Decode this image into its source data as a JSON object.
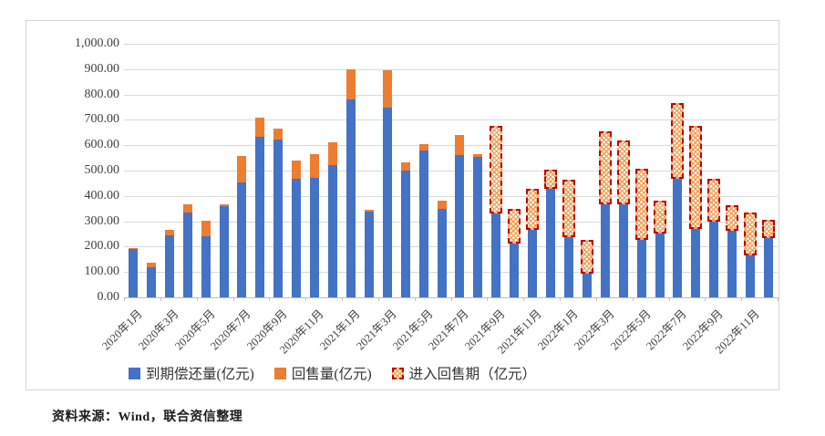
{
  "chart_data": {
    "type": "bar",
    "stacked": true,
    "grid": true,
    "legend_position": "bottom",
    "ylim": [
      0,
      1000
    ],
    "y_ticks": [
      "1,000.00",
      "900.00",
      "800.00",
      "700.00",
      "600.00",
      "500.00",
      "400.00",
      "300.00",
      "200.00",
      "100.00",
      "0.00"
    ],
    "x_label_every": 2,
    "categories": [
      "2020年1月",
      "2020年2月",
      "2020年3月",
      "2020年4月",
      "2020年5月",
      "2020年6月",
      "2020年7月",
      "2020年8月",
      "2020年9月",
      "2020年10月",
      "2020年11月",
      "2020年12月",
      "2021年1月",
      "2021年2月",
      "2021年3月",
      "2021年4月",
      "2021年5月",
      "2021年6月",
      "2021年7月",
      "2021年8月",
      "2021年9月",
      "2021年10月",
      "2021年11月",
      "2021年12月",
      "2022年1月",
      "2022年2月",
      "2022年3月",
      "2022年4月",
      "2022年5月",
      "2022年6月",
      "2022年7月",
      "2022年8月",
      "2022年9月",
      "2022年10月",
      "2022年11月",
      "2022年12月"
    ],
    "series": [
      {
        "name": "到期偿还量(亿元)",
        "color": "#4472C4",
        "style": "solid",
        "values": [
          190,
          118,
          245,
          335,
          242,
          358,
          453,
          633,
          622,
          468,
          473,
          522,
          780,
          338,
          750,
          500,
          578,
          350,
          562,
          553,
          330,
          212,
          265,
          427,
          238,
          92,
          366,
          368,
          226,
          251,
          466,
          269,
          297,
          264,
          165,
          234
        ]
      },
      {
        "name": "回售量(亿元)",
        "color": "#ED7D31",
        "style": "solid",
        "values": [
          3,
          17,
          20,
          33,
          61,
          8,
          105,
          77,
          45,
          73,
          93,
          88,
          120,
          6,
          146,
          31,
          28,
          30,
          78,
          12,
          0,
          0,
          0,
          0,
          0,
          0,
          0,
          0,
          0,
          0,
          0,
          0,
          0,
          0,
          0,
          0
        ]
      },
      {
        "name": "进入回售期（亿元）",
        "color": "#C00000",
        "style": "pattern-dashed",
        "values": [
          0,
          0,
          0,
          0,
          0,
          0,
          0,
          0,
          0,
          0,
          0,
          0,
          0,
          0,
          0,
          0,
          0,
          0,
          0,
          0,
          345,
          136,
          163,
          76,
          225,
          136,
          287,
          252,
          281,
          132,
          300,
          407,
          170,
          99,
          170,
          73
        ]
      }
    ]
  },
  "colors": {
    "maturity_blue": "#4472C4",
    "resale_orange": "#ED7D31",
    "window_red_border": "#C00000",
    "gridline": "#D9D9D9"
  },
  "source_note": "资料来源：Wind，联合资信整理"
}
